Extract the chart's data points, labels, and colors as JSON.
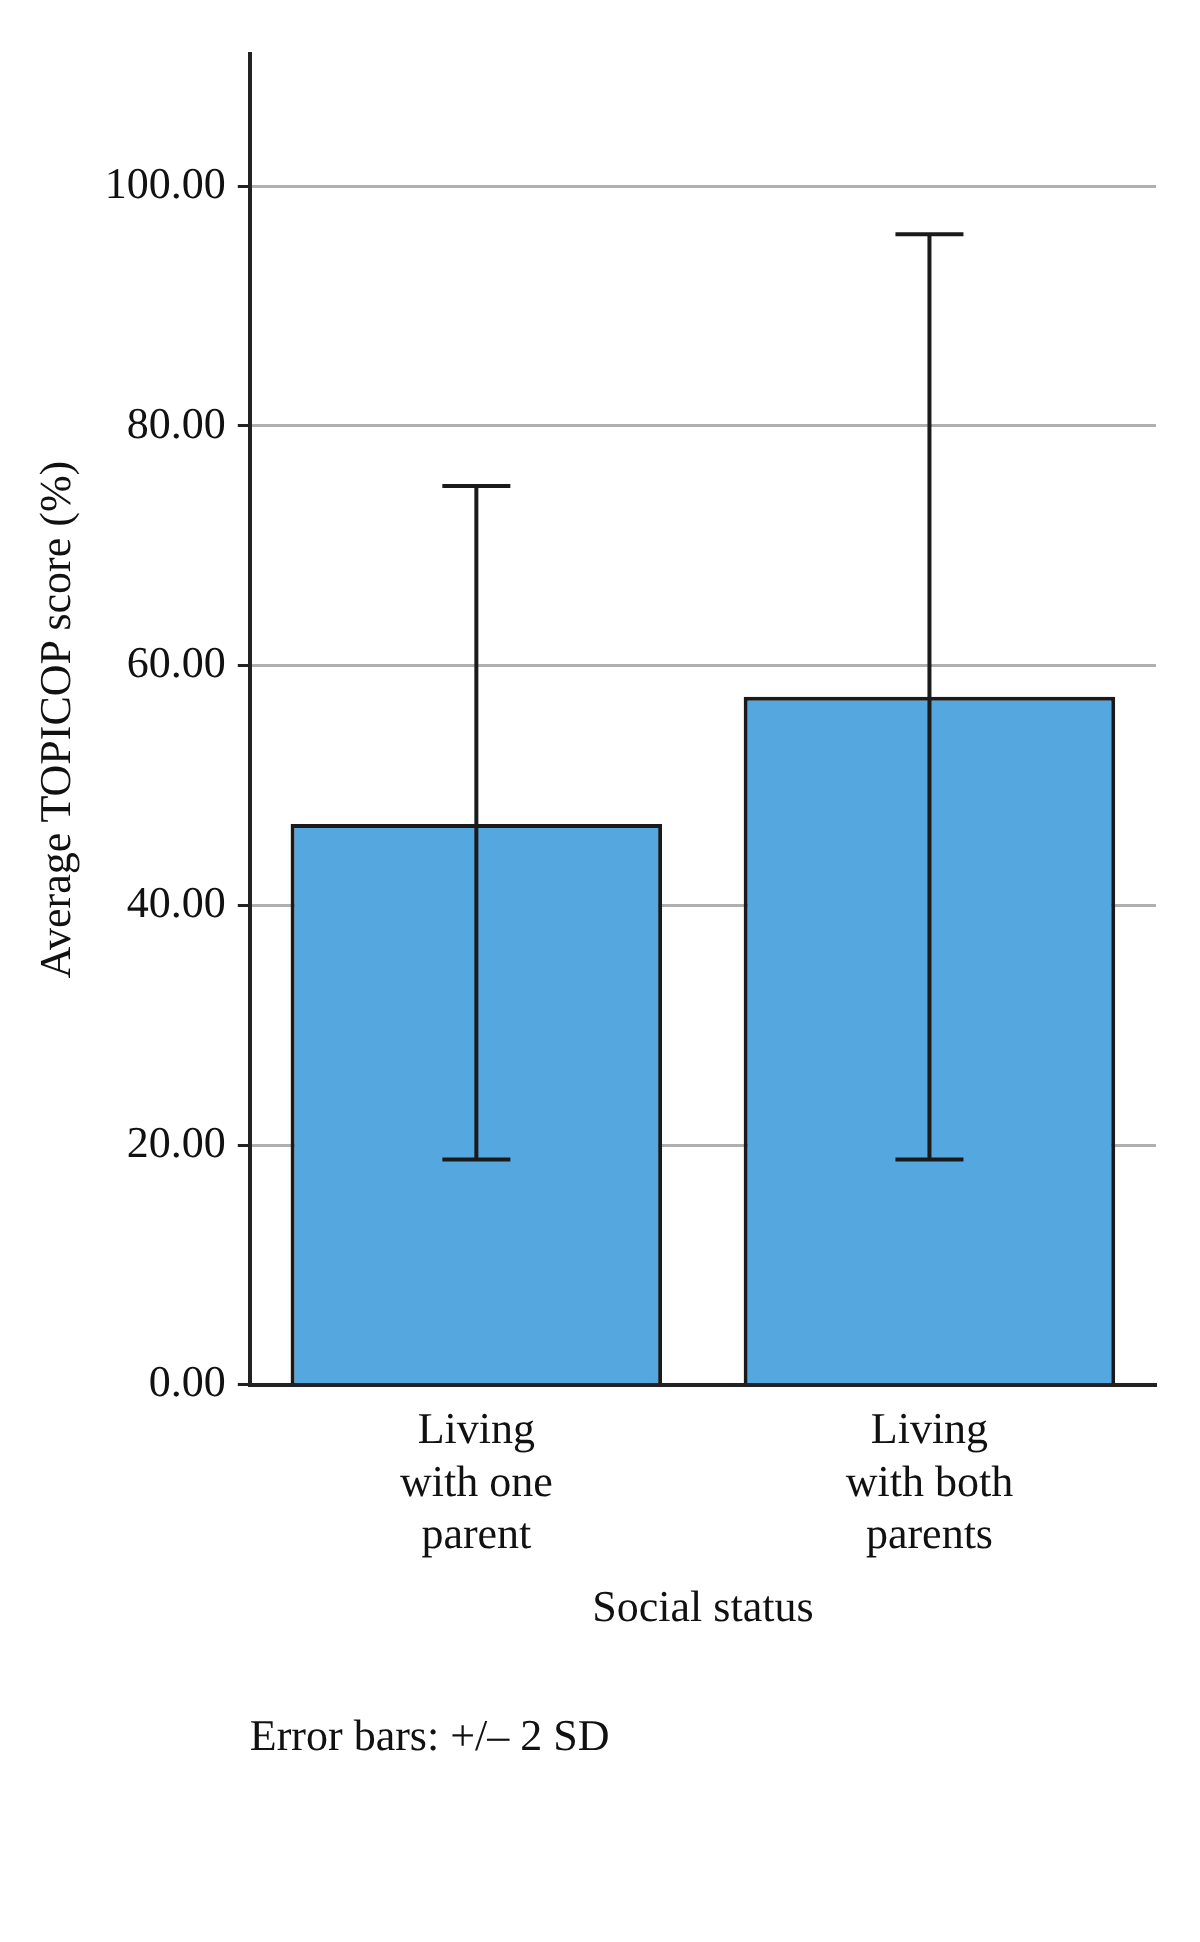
{
  "chart_data": {
    "type": "bar",
    "xlabel": "Social status",
    "ylabel": "Average TOPICOP score (%)",
    "categories": [
      "Living with one parent",
      "Living with both parents"
    ],
    "values": [
      46.8,
      57.4
    ],
    "errors": [
      [
        18.8,
        75.0
      ],
      [
        18.8,
        96.0
      ]
    ],
    "color": "#55a7e0",
    "ylim": [
      0,
      111
    ],
    "yticks": [
      {
        "value": 0,
        "label": "0.00"
      },
      {
        "value": 20,
        "label": "20.00"
      },
      {
        "value": 40,
        "label": "40.00"
      },
      {
        "value": 60,
        "label": "60.00"
      },
      {
        "value": 80,
        "label": "80.00"
      },
      {
        "value": 100,
        "label": "100.00"
      }
    ],
    "grid": "y",
    "annotations": [
      "Error bars: +/– 2 SD"
    ]
  }
}
